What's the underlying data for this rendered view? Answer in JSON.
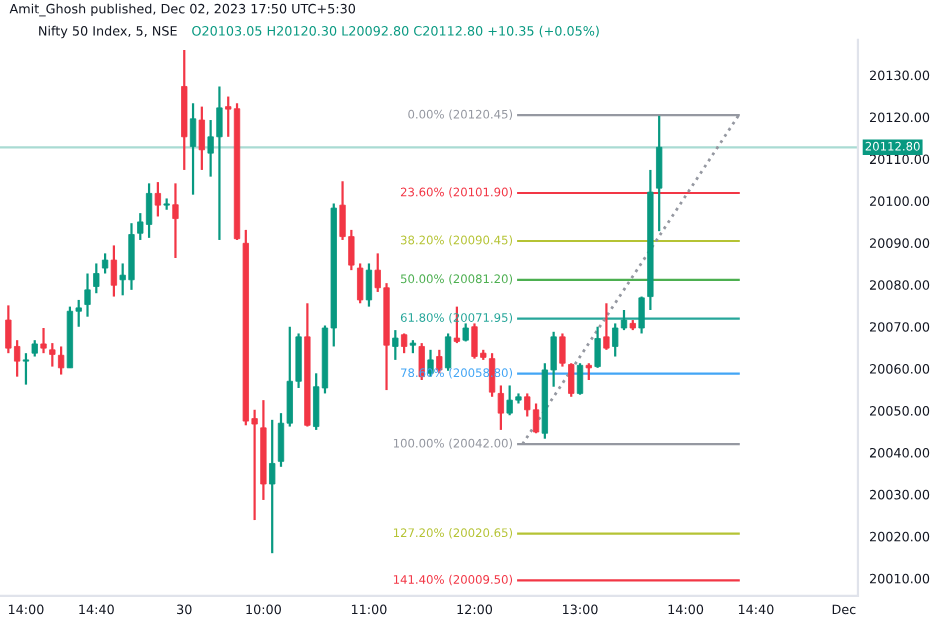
{
  "chart_data": {
    "type": "candlestick",
    "title": "Nifty 50 Index, 5, NSE",
    "subtitle": "O20103.05 H20120.30 L20092.80 C20112.80 +10.35 (+0.05%)",
    "annotations": [
      "Amit_Ghosh published, Dec 02, 2023 17:50 UTC+5:30"
    ],
    "ylim": [
      20005.8,
      20138.4
    ],
    "yticks": [
      {
        "value": 20010,
        "label": "20010.00"
      },
      {
        "value": 20020,
        "label": "20020.00"
      },
      {
        "value": 20030,
        "label": "20030.00"
      },
      {
        "value": 20040,
        "label": "20040.00"
      },
      {
        "value": 20050,
        "label": "20050.00"
      },
      {
        "value": 20060,
        "label": "20060.00"
      },
      {
        "value": 20070,
        "label": "20070.00"
      },
      {
        "value": 20080,
        "label": "20080.00"
      },
      {
        "value": 20090,
        "label": "20090.00"
      },
      {
        "value": 20100,
        "label": "20100.00"
      },
      {
        "value": 20110,
        "label": "20110.00"
      },
      {
        "value": 20120,
        "label": "20120.00"
      },
      {
        "value": 20130,
        "label": "20130.00"
      }
    ],
    "grid": false,
    "categories": [
      null,
      null,
      "14:00",
      null,
      null,
      null,
      null,
      null,
      null,
      null,
      "14:40",
      null,
      null,
      null,
      null,
      null,
      null,
      null,
      null,
      null,
      "30",
      null,
      null,
      null,
      null,
      null,
      null,
      null,
      null,
      "10:00",
      null,
      null,
      null,
      null,
      null,
      null,
      null,
      null,
      null,
      null,
      null,
      "11:00",
      null,
      null,
      null,
      null,
      null,
      null,
      null,
      null,
      null,
      null,
      null,
      "12:00",
      null,
      null,
      null,
      null,
      null,
      null,
      null,
      null,
      null,
      null,
      null,
      "13:00",
      null,
      null,
      null,
      null,
      null,
      null,
      null,
      null,
      null,
      null,
      null,
      "14:00",
      null,
      null,
      null,
      null,
      null,
      null,
      null,
      "14:40",
      null,
      null,
      null,
      null,
      null,
      null,
      null,
      null,
      null,
      "Dec"
    ],
    "ohlc": [
      [
        20071.6,
        20075.1,
        20063.7,
        20064.9
      ],
      [
        20065.3,
        20066.8,
        20058.1,
        20061.8
      ],
      [
        20061.8,
        20063.7,
        20056.2,
        20062.1
      ],
      [
        20063.7,
        20066.8,
        20062.9,
        20065.9
      ],
      [
        20065.9,
        20069.7,
        20063.7,
        20064.9
      ],
      [
        20064.5,
        20066.1,
        20060.5,
        20063.4
      ],
      [
        20063.2,
        20065.3,
        20058.6,
        20060.2
      ],
      [
        20060.2,
        20074.8,
        20060.2,
        20073.7
      ],
      [
        20073.7,
        20076.4,
        20070.0,
        20074.5
      ],
      [
        20075.3,
        20082.7,
        20072.4,
        20078.8
      ],
      [
        20079.6,
        20085.1,
        20078.0,
        20082.7
      ],
      [
        20084.0,
        20087.5,
        20082.7,
        20085.9
      ],
      [
        20085.9,
        20089.4,
        20077.2,
        20079.9
      ],
      [
        20081.2,
        20085.1,
        20077.5,
        20082.3
      ],
      [
        20081.2,
        20094.7,
        20078.8,
        20092.0
      ],
      [
        20092.3,
        20097.1,
        20090.7,
        20095.0
      ],
      [
        20094.4,
        20104.2,
        20091.2,
        20101.8
      ],
      [
        20101.8,
        20104.5,
        20096.3,
        20099.0
      ],
      [
        20099.0,
        20100.6,
        20097.9,
        20099.3
      ],
      [
        20099.1,
        20104.2,
        20086.4,
        20095.8
      ],
      [
        20127.3,
        20136.0,
        20107.4,
        20115.3
      ],
      [
        20113.0,
        20123.3,
        20101.5,
        20119.6
      ],
      [
        20119.3,
        20122.5,
        20107.4,
        20112.2
      ],
      [
        20111.4,
        20119.3,
        20105.8,
        20115.3
      ],
      [
        20115.3,
        20127.3,
        20090.7,
        20122.2
      ],
      [
        20122.5,
        20124.9,
        20115.3,
        20121.9
      ],
      [
        20122.0,
        20123.3,
        20090.7,
        20091.0
      ],
      [
        20089.9,
        20093.1,
        20046.5,
        20047.5
      ],
      [
        20048.1,
        20050.2,
        20023.9,
        20046.8
      ],
      [
        20045.9,
        20052.5,
        20028.7,
        20032.5
      ],
      [
        20032.5,
        20047.8,
        20016.0,
        20037.4
      ],
      [
        20037.9,
        20049.4,
        20036.6,
        20047.0
      ],
      [
        20047.0,
        20070.0,
        20046.2,
        20057.0
      ],
      [
        20057.0,
        20068.4,
        20055.4,
        20067.6
      ],
      [
        20067.6,
        20075.6,
        20046.2,
        20046.5
      ],
      [
        20046.2,
        20058.9,
        20045.4,
        20055.7
      ],
      [
        20055.4,
        20070.3,
        20054.1,
        20069.7
      ],
      [
        20069.7,
        20099.4,
        20065.3,
        20098.3
      ],
      [
        20099.0,
        20104.7,
        20090.7,
        20091.5
      ],
      [
        20091.5,
        20093.1,
        20083.5,
        20084.7
      ],
      [
        20084.0,
        20085.1,
        20075.6,
        20076.4
      ],
      [
        20076.4,
        20085.1,
        20074.8,
        20083.5
      ],
      [
        20083.5,
        20087.5,
        20078.3,
        20079.3
      ],
      [
        20079.3,
        20080.4,
        20054.9,
        20065.6
      ],
      [
        20065.3,
        20069.2,
        20062.1,
        20067.3
      ],
      [
        20068.1,
        20068.4,
        20063.7,
        20065.3
      ],
      [
        20065.6,
        20066.8,
        20063.7,
        20066.1
      ],
      [
        20065.3,
        20066.1,
        20057.3,
        20058.1
      ],
      [
        20058.9,
        20064.5,
        20058.1,
        20062.1
      ],
      [
        20062.9,
        20064.5,
        20058.9,
        20059.7
      ],
      [
        20060.2,
        20068.4,
        20059.5,
        20067.6
      ],
      [
        20067.3,
        20074.8,
        20066.1,
        20066.5
      ],
      [
        20066.8,
        20070.8,
        20066.5,
        20069.7
      ],
      [
        20070.0,
        20070.8,
        20062.4,
        20062.9
      ],
      [
        20063.7,
        20064.5,
        20062.1,
        20062.7
      ],
      [
        20062.4,
        20063.7,
        20053.3,
        20054.4
      ],
      [
        20054.1,
        20056.0,
        20045.4,
        20049.4
      ],
      [
        20049.4,
        20056.0,
        20048.9,
        20052.5
      ],
      [
        20052.5,
        20054.1,
        20051.7,
        20053.3
      ],
      [
        20053.3,
        20054.1,
        20048.6,
        20050.2
      ],
      [
        20050.2,
        20051.7,
        20044.6,
        20044.9
      ],
      [
        20044.6,
        20061.3,
        20043.3,
        20059.7
      ],
      [
        20059.7,
        20068.8,
        20055.7,
        20067.6
      ],
      [
        20067.6,
        20068.4,
        20060.5,
        20061.3
      ],
      [
        20061.0,
        20061.3,
        20053.3,
        20054.1
      ],
      [
        20054.1,
        20061.3,
        20053.8,
        20060.8
      ],
      [
        20060.8,
        20061.3,
        20057.3,
        20060.2
      ],
      [
        20060.5,
        20070.0,
        20060.2,
        20067.2
      ],
      [
        20067.6,
        20075.6,
        20064.5,
        20064.9
      ],
      [
        20065.3,
        20070.8,
        20062.9,
        20069.7
      ],
      [
        20069.7,
        20074.0,
        20069.2,
        20071.6
      ],
      [
        20070.8,
        20071.6,
        20069.2,
        20069.7
      ],
      [
        20069.7,
        20077.2,
        20068.4,
        20076.9
      ],
      [
        20077.2,
        20107.4,
        20074.0,
        20102.1
      ],
      [
        20103.05,
        20120.3,
        20092.8,
        20112.8
      ],
      null,
      null,
      null,
      null,
      null,
      null,
      null,
      null,
      null,
      null,
      null,
      null,
      null,
      null,
      null,
      null,
      null,
      null,
      null,
      null,
      null
    ],
    "colors": [
      "#f23645",
      "#f23645",
      "#089981",
      "#089981",
      "#f23645",
      "#f23645",
      "#f23645",
      "#089981",
      "#089981",
      "#089981",
      "#089981",
      "#089981",
      "#f23645",
      "#089981",
      "#089981",
      "#089981",
      "#089981",
      "#f23645",
      "#089981",
      "#f23645",
      "#f23645",
      "#089981",
      "#f23645",
      "#089981",
      "#089981",
      "#f23645",
      "#f23645",
      "#f23645",
      "#f23645",
      "#f23645",
      "#089981",
      "#089981",
      "#089981",
      "#089981",
      "#f23645",
      "#089981",
      "#089981",
      "#089981",
      "#f23645",
      "#f23645",
      "#f23645",
      "#089981",
      "#f23645",
      "#f23645",
      "#089981",
      "#f23645",
      "#089981",
      "#f23645",
      "#089981",
      "#f23645",
      "#089981",
      "#f23645",
      "#089981",
      "#f23645",
      "#f23645",
      "#f23645",
      "#f23645",
      "#089981",
      "#089981",
      "#f23645",
      "#f23645",
      "#089981",
      "#089981",
      "#f23645",
      "#f23645",
      "#089981",
      "#f23645",
      "#089981",
      "#f23645",
      "#089981",
      "#089981",
      "#f23645",
      "#089981",
      "#089981",
      "#089981",
      null,
      null,
      null,
      null,
      null,
      null,
      null,
      null,
      null,
      null,
      null,
      null,
      null,
      null,
      null,
      null,
      null,
      null,
      null,
      null,
      null
    ],
    "ref_lines": [
      {
        "axis": "y",
        "value": 20112.8,
        "label": "20112.80",
        "color": "#089981"
      },
      {
        "axis": "y",
        "value": 20120.45,
        "label": "0.00% (20120.45)",
        "color": "#9598a1"
      },
      {
        "axis": "y",
        "value": 20101.9,
        "label": "23.60% (20101.90)",
        "color": "#f23645"
      },
      {
        "axis": "y",
        "value": 20090.45,
        "label": "38.20% (20090.45)",
        "color": "#b5c334"
      },
      {
        "axis": "y",
        "value": 20081.2,
        "label": "50.00% (20081.20)",
        "color": "#4caf50"
      },
      {
        "axis": "y",
        "value": 20071.95,
        "label": "61.80% (20071.95)",
        "color": "#26a69a"
      },
      {
        "axis": "y",
        "value": 20058.8,
        "label": "78.60% (20058.80)",
        "color": "#42a5f5"
      },
      {
        "axis": "y",
        "value": 20042.0,
        "label": "100.00% (20042.00)",
        "color": "#9598a1"
      },
      {
        "axis": "y",
        "value": 20020.65,
        "label": "127.20% (20020.65)",
        "color": "#b5c334"
      },
      {
        "axis": "y",
        "value": 20009.5,
        "label": "141.40% (20009.50)",
        "color": "#f23645"
      }
    ]
  }
}
